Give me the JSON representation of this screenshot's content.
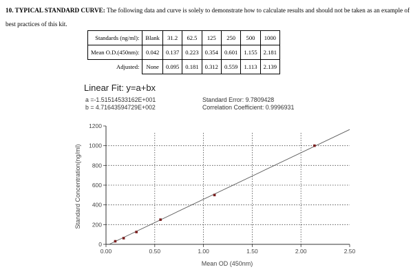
{
  "heading": {
    "section": "10. TYPICAL STANDARD CURVE:",
    "text": "The following data and curve is solely to demonstrate how to calculate results and should not be taken as an example of best practices of this kit."
  },
  "table": {
    "rows": [
      {
        "label": "Standards (ng/ml):",
        "values": [
          "Blank",
          "31.2",
          "62.5",
          "125",
          "250",
          "500",
          "1000"
        ]
      },
      {
        "label": "Mean O.D.(450nm):",
        "values": [
          "0.042",
          "0.137",
          "0.223",
          "0.354",
          "0.601",
          "1.155",
          "2.181"
        ]
      },
      {
        "label": "Adjusted:",
        "values": [
          "None",
          "0.095",
          "0.181",
          "0.312",
          "0.559",
          "1.113",
          "2.139"
        ]
      }
    ]
  },
  "fit": {
    "title": "Linear Fit: y=a+bx",
    "a": "a =-1.51514533162E+001",
    "b": "b = 4.71643594729E+002",
    "std_error": "Standard Error: 9.7809428",
    "corr": "Correlation Coefficient: 0.9996931"
  },
  "chart_data": {
    "type": "scatter",
    "xlabel": "Mean OD (450nm)",
    "ylabel": "Standard Concentration(ng/ml)",
    "xlim": [
      0,
      2.5
    ],
    "ylim": [
      0,
      1200
    ],
    "xticks": [
      "0.00",
      "0.50",
      "1.00",
      "1.50",
      "2.00",
      "2.50"
    ],
    "yticks": [
      "0",
      "200",
      "400",
      "600",
      "800",
      "1000",
      "1200"
    ],
    "grid": true,
    "series": [
      {
        "x": [
          0.095,
          0.181,
          0.312,
          0.559,
          1.113,
          2.139
        ],
        "y": [
          31.2,
          62.5,
          125,
          250,
          500,
          1000
        ]
      }
    ],
    "fit_line": {
      "a": -15.1514533162,
      "b": 471.643594729
    },
    "colors": {
      "points": "#7a1f1f",
      "line": "#5a5a5a",
      "grid": "#444444"
    }
  }
}
